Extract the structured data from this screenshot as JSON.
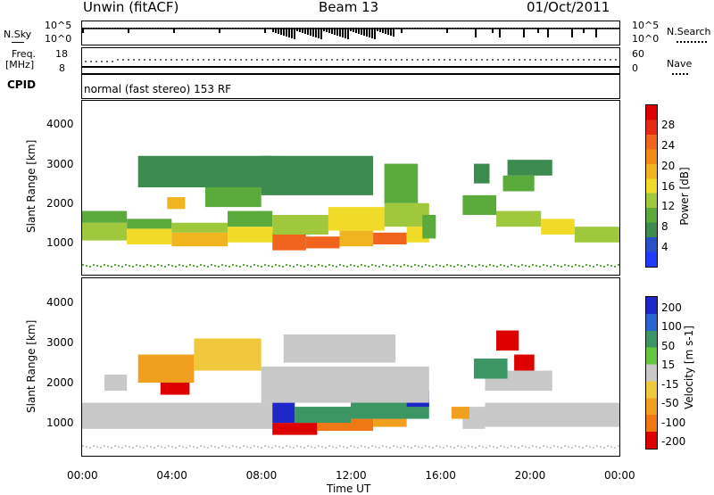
{
  "header": {
    "station": "Unwin (fitACF)",
    "beam": "Beam 13",
    "date": "01/Oct/2011"
  },
  "panels": {
    "nsky": {
      "label": "N.Sky",
      "ticks": [
        "10^5",
        "10^0"
      ]
    },
    "nsearch": {
      "label": "N.Search",
      "ticks": [
        "10^5",
        "10^0"
      ]
    },
    "freq": {
      "label_line1": "Freq.",
      "label_line2": "[MHz]",
      "ticks": [
        "18",
        "8"
      ]
    },
    "nave": {
      "label": "Nave",
      "ticks": [
        "60",
        "0"
      ]
    },
    "cpid": {
      "label": "CPID",
      "mode": "normal (fast stereo) 153 RF"
    }
  },
  "colors": {
    "power": [
      "#1e3cff",
      "#2850c8",
      "#3c8c50",
      "#5aaa3c",
      "#a0c83c",
      "#f0dc28",
      "#f0b41e",
      "#f08c14",
      "#f0641e",
      "#e62814",
      "#dc0000"
    ],
    "velocity": [
      "#1e28c8",
      "#2864d2",
      "#3c9664",
      "#64c83c",
      "#c8c8c8",
      "#f0c83c",
      "#f0a01e",
      "#f07814",
      "#e63214",
      "#dc0000"
    ]
  },
  "chart_data": [
    {
      "type": "heatmap",
      "name": "power",
      "ylabel": "Slant Range [km]",
      "yticks": [
        1000,
        2000,
        3000,
        4000
      ],
      "ylim": [
        180,
        4600
      ],
      "xlim": [
        0,
        24
      ],
      "colorbar_label": "Power [dB]",
      "colorbar_ticks": [
        4,
        8,
        12,
        16,
        20,
        24,
        28
      ],
      "colorbar_range": [
        0,
        32
      ],
      "cells": [
        [
          0,
          2,
          1050,
          1500,
          12
        ],
        [
          2,
          4,
          950,
          1350,
          16
        ],
        [
          4,
          6.5,
          900,
          1250,
          20
        ],
        [
          6.5,
          8.5,
          1000,
          1400,
          16
        ],
        [
          8.5,
          10,
          800,
          1200,
          26
        ],
        [
          10,
          11.5,
          850,
          1150,
          24
        ],
        [
          11.5,
          13,
          900,
          1300,
          20
        ],
        [
          13,
          14.5,
          950,
          1250,
          26
        ],
        [
          14.5,
          15.5,
          1000,
          1400,
          16
        ],
        [
          17,
          18.5,
          1700,
          2200,
          8
        ],
        [
          18.5,
          20.5,
          1400,
          1800,
          12
        ],
        [
          20.5,
          22,
          1200,
          1600,
          16
        ],
        [
          22,
          24,
          1000,
          1400,
          12
        ],
        [
          0,
          2,
          1500,
          1800,
          8
        ],
        [
          2,
          4,
          1350,
          1600,
          8
        ],
        [
          4,
          6.5,
          1250,
          1500,
          12
        ],
        [
          6.5,
          8.5,
          1400,
          1800,
          8
        ],
        [
          8.5,
          11,
          1200,
          1700,
          12
        ],
        [
          11,
          13.5,
          1300,
          1900,
          16
        ],
        [
          13.5,
          15.5,
          1400,
          2000,
          12
        ],
        [
          3.8,
          4.6,
          1850,
          2150,
          20
        ],
        [
          5.5,
          8,
          1900,
          2600,
          8
        ],
        [
          8,
          13,
          2200,
          3200,
          6
        ],
        [
          13.5,
          15,
          2000,
          3000,
          8
        ],
        [
          18.8,
          20.2,
          2300,
          2700,
          10
        ],
        [
          19,
          21,
          2700,
          3100,
          6
        ],
        [
          2.5,
          8.5,
          2400,
          3200,
          5
        ],
        [
          15.2,
          15.8,
          1100,
          1700,
          8
        ],
        [
          17.5,
          18.2,
          2500,
          3000,
          6
        ]
      ]
    },
    {
      "type": "heatmap",
      "name": "velocity",
      "ylabel": "Slant Range [km]",
      "xlabel": "Time UT",
      "yticks": [
        1000,
        2000,
        3000,
        4000
      ],
      "ylim": [
        180,
        4600
      ],
      "xlim": [
        0,
        24
      ],
      "xticks": [
        "00:00",
        "04:00",
        "08:00",
        "12:00",
        "16:00",
        "20:00",
        "00:00"
      ],
      "colorbar_label": "Velocity [m s-1]",
      "colorbar_ticks": [
        200,
        100,
        50,
        15,
        -15,
        -50,
        -100,
        -200
      ],
      "cells": [
        [
          0,
          8.5,
          850,
          1500,
          0
        ],
        [
          8.5,
          10.5,
          700,
          1000,
          -150
        ],
        [
          10.5,
          13,
          800,
          1100,
          -80
        ],
        [
          13,
          14.5,
          900,
          1200,
          -40
        ],
        [
          8.5,
          9.5,
          1000,
          1500,
          150
        ],
        [
          9.5,
          12,
          1000,
          1400,
          60
        ],
        [
          12,
          15.5,
          1100,
          1600,
          40
        ],
        [
          14.5,
          15.5,
          1400,
          1800,
          150
        ],
        [
          3.5,
          4.8,
          1700,
          2200,
          -200
        ],
        [
          2.5,
          5,
          2000,
          2700,
          -40
        ],
        [
          5,
          8,
          2300,
          3100,
          -30
        ],
        [
          8,
          15.5,
          1500,
          2400,
          0
        ],
        [
          9,
          14,
          2500,
          3200,
          0
        ],
        [
          17,
          18,
          850,
          1400,
          0
        ],
        [
          18,
          24,
          900,
          1500,
          0
        ],
        [
          18.5,
          19.5,
          2800,
          3300,
          -200
        ],
        [
          19.3,
          20.2,
          2300,
          2700,
          -150
        ],
        [
          18,
          21,
          1800,
          2300,
          0
        ],
        [
          17.5,
          19,
          2100,
          2600,
          40
        ],
        [
          16.5,
          17.3,
          1100,
          1400,
          -50
        ],
        [
          1,
          2,
          1800,
          2200,
          0
        ]
      ]
    }
  ]
}
